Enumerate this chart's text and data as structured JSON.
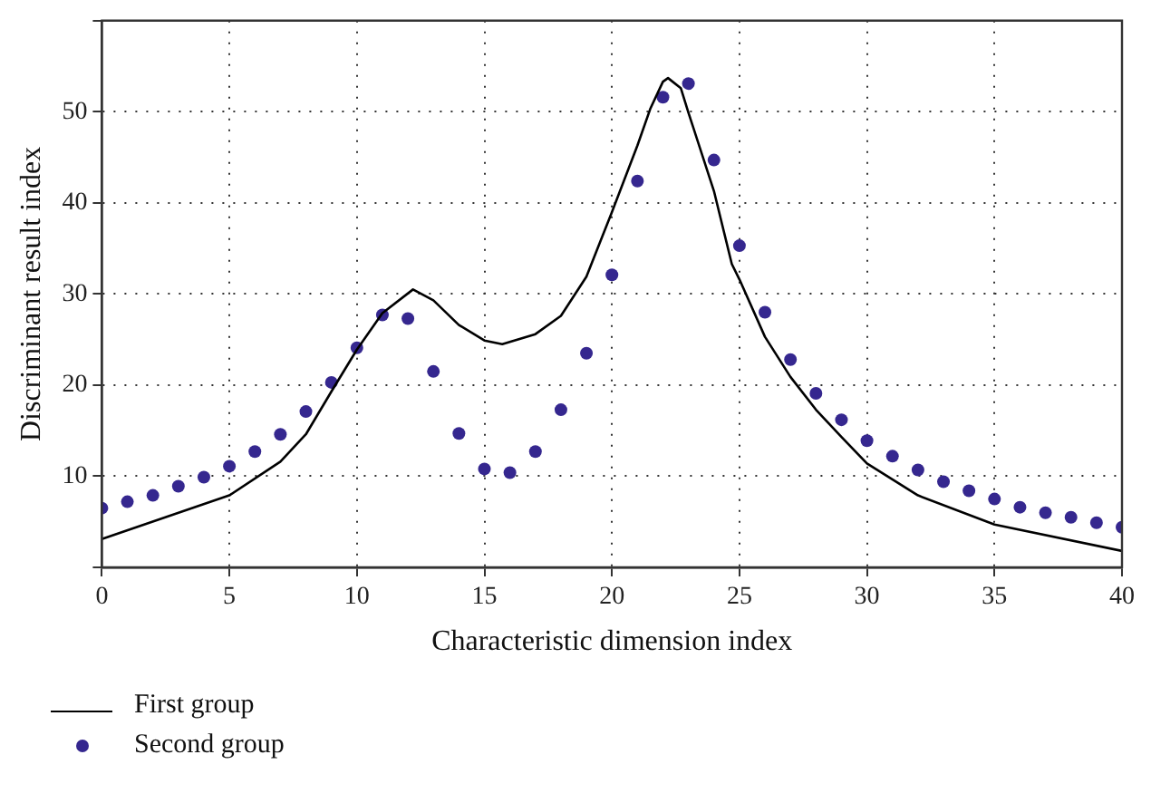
{
  "chart_data": {
    "type": "line",
    "xlabel": "Characteristic dimension index",
    "ylabel": "Discriminant result index",
    "xlim": [
      0,
      40
    ],
    "xticks": [
      0,
      5,
      10,
      15,
      20,
      25,
      30,
      35,
      40
    ],
    "ylim": [
      0,
      60
    ],
    "yticks": [
      {
        "value": 0,
        "label": null
      },
      10,
      20,
      30,
      40,
      50,
      {
        "value": 60,
        "label": null
      }
    ],
    "grid": true,
    "legend": "bottom left",
    "series": [
      {
        "name": "First group",
        "color": "#000000",
        "marker": "none",
        "line_style": "solid",
        "x": [
          0,
          5,
          7,
          8,
          9,
          10,
          11,
          12.2,
          13,
          14,
          15,
          15.7,
          17,
          18,
          19,
          20,
          21,
          21.5,
          22,
          22.2,
          22.7,
          23,
          24,
          24.7,
          25,
          26,
          27,
          28,
          29,
          30,
          32,
          35,
          40
        ],
        "values": [
          3.1,
          7.9,
          11.6,
          14.6,
          19.3,
          23.9,
          27.9,
          30.5,
          29.3,
          26.6,
          24.9,
          24.5,
          25.6,
          27.6,
          31.9,
          39,
          46.3,
          50.3,
          53.3,
          53.7,
          52.6,
          49.9,
          41.3,
          33.3,
          31.6,
          25.3,
          20.9,
          17.3,
          14.3,
          11.4,
          7.9,
          4.7,
          1.8
        ]
      },
      {
        "name": "Second group",
        "type": "scatter",
        "color": "#35278f",
        "marker": "circle",
        "x": [
          0,
          1,
          2,
          3,
          4,
          5,
          6,
          7,
          8,
          9,
          10,
          11,
          12,
          13,
          14,
          15,
          16,
          17,
          18,
          19,
          20,
          21,
          22,
          23,
          24,
          25,
          26,
          27,
          28,
          29,
          30,
          31,
          32,
          33,
          34,
          35,
          36,
          37,
          38,
          39,
          40
        ],
        "values": [
          6.5,
          7.2,
          7.9,
          8.9,
          9.9,
          11.1,
          12.7,
          14.6,
          17.1,
          20.3,
          24.1,
          27.7,
          27.3,
          21.5,
          14.7,
          10.8,
          10.4,
          12.7,
          17.3,
          23.5,
          32.1,
          42.4,
          51.6,
          53.1,
          44.7,
          35.3,
          28.0,
          22.8,
          19.1,
          16.2,
          13.9,
          12.2,
          10.7,
          9.4,
          8.4,
          7.5,
          6.6,
          6.0,
          5.5,
          4.9,
          4.4
        ]
      }
    ]
  }
}
